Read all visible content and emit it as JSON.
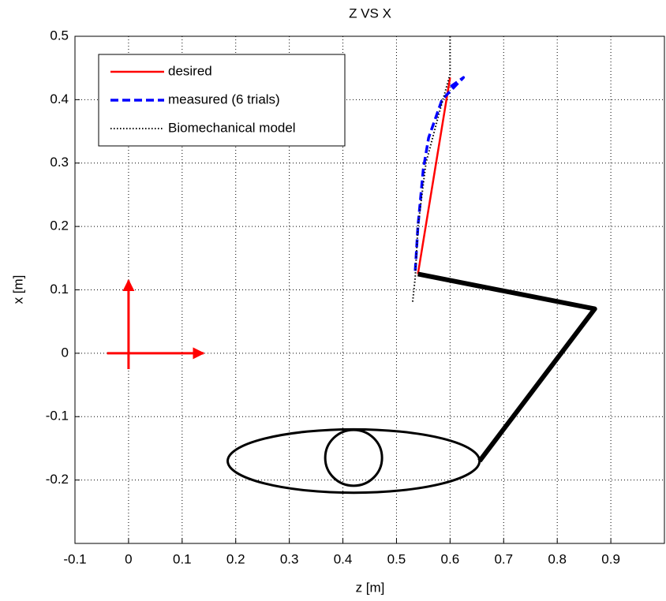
{
  "chart_data": {
    "type": "line",
    "title": "Z VS X",
    "x_label": "z [m]",
    "y_label": "x [m]",
    "xlim": [
      -0.1,
      1.0
    ],
    "ylim": [
      -0.3,
      0.5
    ],
    "xticks": [
      -0.1,
      0,
      0.1,
      0.2,
      0.3,
      0.4,
      0.5,
      0.6,
      0.7,
      0.8,
      0.9
    ],
    "yticks": [
      -0.2,
      -0.1,
      0,
      0.1,
      0.2,
      0.3,
      0.4,
      0.5
    ],
    "grid": true,
    "legend": "upper left",
    "series": [
      {
        "name": "desired",
        "color": "#ff0000",
        "style": "solid",
        "x": [
          0.54,
          0.6
        ],
        "values": [
          0.125,
          0.435
        ]
      },
      {
        "name": "measured (6 trials)",
        "color": "#0000ff",
        "style": "dashed",
        "x": [
          0.535,
          0.54,
          0.55,
          0.56,
          0.585,
          0.625,
          0.6
        ],
        "values": [
          0.13,
          0.2,
          0.29,
          0.34,
          0.4,
          0.435,
          0.42
        ]
      },
      {
        "name": "Biomechanical model",
        "color": "#000000",
        "style": "dotted",
        "x": [
          0.6,
          0.6,
          0.58,
          0.555,
          0.54,
          0.535,
          0.53
        ],
        "values": [
          0.5,
          0.44,
          0.38,
          0.3,
          0.2,
          0.12,
          0.08
        ]
      },
      {
        "color": "#000000",
        "style": "thick",
        "x": [
          0.54,
          0.87,
          0.655
        ],
        "values": [
          0.125,
          0.07,
          -0.17
        ]
      }
    ],
    "shapes": [
      {
        "cx": 0.42,
        "cy": -0.17,
        "rx": 0.235,
        "ry": 0.05
      },
      {
        "cx": 0.42,
        "cy": -0.165,
        "rx": 0.053,
        "ry": 0.044
      }
    ],
    "arrows": [
      {
        "color": "#ff0000",
        "x": [
          -0.04,
          0.14
        ],
        "values": [
          0,
          0
        ]
      },
      {
        "color": "#ff0000",
        "x": [
          0,
          0
        ],
        "values": [
          -0.025,
          0.115
        ]
      }
    ]
  }
}
